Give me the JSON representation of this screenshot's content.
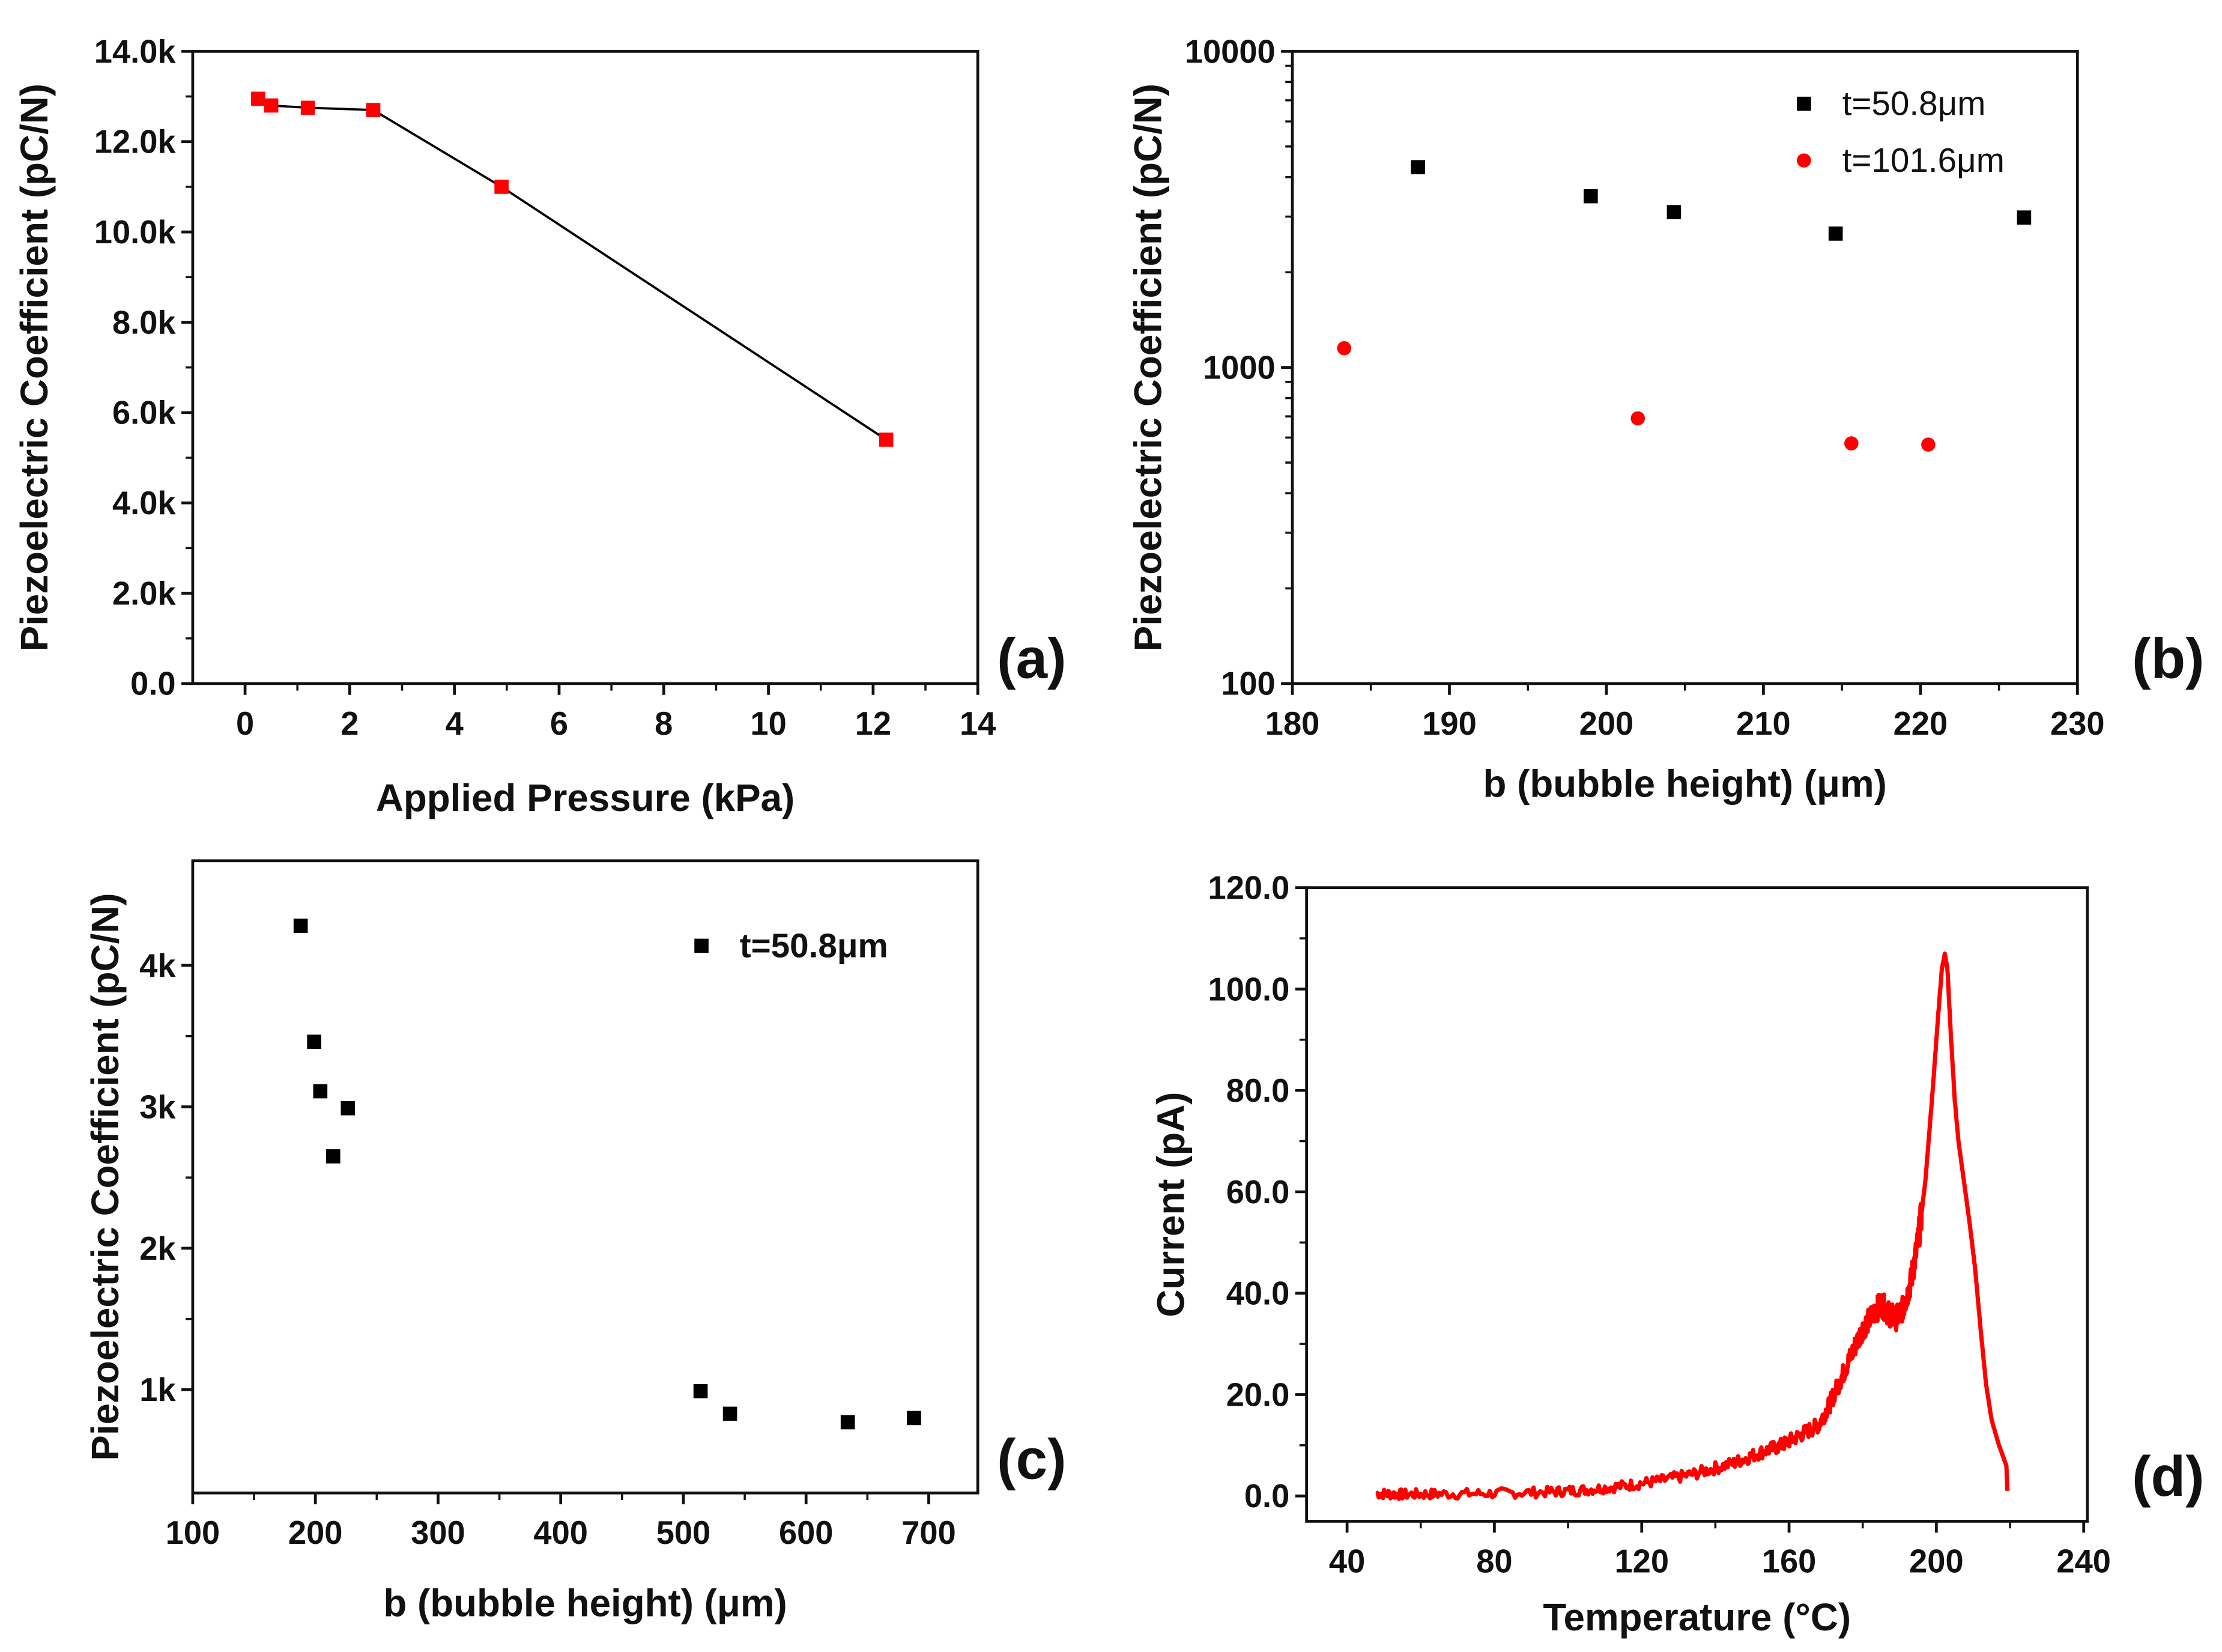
{
  "chart_data": [
    {
      "id": "a",
      "type": "line",
      "panel_label": "(a)",
      "xlabel": "Applied Pressure (kPa)",
      "ylabel": "Piezoelectric Coefficient (pC/N)",
      "xlim": [
        -1,
        14
      ],
      "ylim": [
        0,
        14000
      ],
      "yscale": "linear",
      "xticks": [
        0,
        2,
        4,
        6,
        8,
        10,
        12,
        14
      ],
      "xtick_labels": [
        "0",
        "2",
        "4",
        "6",
        "8",
        "10",
        "12",
        "14"
      ],
      "yticks": [
        0,
        2000,
        4000,
        6000,
        8000,
        10000,
        12000,
        14000
      ],
      "ytick_labels": [
        "0.0",
        "2.0k",
        "4.0k",
        "6.0k",
        "8.0k",
        "10.0k",
        "12.0k",
        "14.0k"
      ],
      "series": [
        {
          "name": "",
          "color": "#ff0000",
          "marker": "square",
          "line_color": "#000000",
          "x": [
            0.25,
            0.5,
            1.2,
            2.45,
            4.9,
            12.25
          ],
          "y": [
            12950,
            12800,
            12750,
            12700,
            11000,
            5400
          ]
        }
      ],
      "legend": false
    },
    {
      "id": "b",
      "type": "scatter",
      "panel_label": "(b)",
      "xlabel": "b (bubble height) (μm)",
      "ylabel": "Piezoelectric Coefficient (pC/N)",
      "xlim": [
        180,
        230
      ],
      "ylim": [
        100,
        10000
      ],
      "yscale": "log",
      "xticks": [
        180,
        190,
        200,
        210,
        220,
        230
      ],
      "xtick_labels": [
        "180",
        "190",
        "200",
        "210",
        "220",
        "230"
      ],
      "yticks": [
        100,
        1000,
        10000
      ],
      "ytick_labels": [
        "100",
        "1000",
        "10000"
      ],
      "series": [
        {
          "name": "t=50.8μm",
          "color": "#000000",
          "marker": "square",
          "x": [
            188,
            199,
            204.3,
            214.6,
            226.6
          ],
          "y": [
            4300,
            3480,
            3100,
            2650,
            2980
          ]
        },
        {
          "name": "t=101.6μm",
          "color": "#ff0000",
          "marker": "circle",
          "x": [
            183.3,
            202,
            215.6,
            220.5
          ],
          "y": [
            1150,
            690,
            575,
            570
          ]
        }
      ],
      "legend": "top-right"
    },
    {
      "id": "c",
      "type": "scatter",
      "panel_label": "(c)",
      "xlabel": "b (bubble height) (μm)",
      "ylabel": "Piezoelectric Coefficient (pC/N)",
      "xlim": [
        100,
        740
      ],
      "ylim": [
        270,
        4740
      ],
      "yscale": "linear",
      "xticks": [
        100,
        200,
        300,
        400,
        500,
        600,
        700
      ],
      "xtick_labels": [
        "100",
        "200",
        "300",
        "400",
        "500",
        "600",
        "700"
      ],
      "yticks": [
        1000,
        2000,
        3000,
        4000
      ],
      "ytick_labels": [
        "1k",
        "2k",
        "3k",
        "4k"
      ],
      "series": [
        {
          "name": "t=50.8μm",
          "color": "#000000",
          "marker": "square",
          "x": [
            188,
            199,
            204,
            214.5,
            226.5,
            514,
            538,
            634,
            688
          ],
          "y": [
            4280,
            3460,
            3110,
            2650,
            2990,
            990,
            830,
            770,
            800
          ]
        }
      ],
      "legend": "top-right"
    },
    {
      "id": "d",
      "type": "line",
      "panel_label": "(d)",
      "xlabel": "Temperature (°C)",
      "ylabel": "Current (pA)",
      "xlim": [
        29,
        241
      ],
      "ylim": [
        -5,
        120
      ],
      "yscale": "linear",
      "xticks": [
        40,
        80,
        120,
        160,
        200,
        240
      ],
      "xtick_labels": [
        "40",
        "80",
        "120",
        "160",
        "200",
        "240"
      ],
      "yticks": [
        0,
        20,
        40,
        60,
        80,
        100,
        120
      ],
      "ytick_labels": [
        "0.0",
        "20.0",
        "40.0",
        "60.0",
        "80.0",
        "100.0",
        "120.0"
      ],
      "series": [
        {
          "name": "",
          "color": "#ff0000",
          "marker": "none",
          "x": [
            48,
            55,
            65,
            80,
            95,
            105,
            115,
            125,
            135,
            145,
            152,
            158,
            163,
            168,
            171,
            174,
            177,
            180,
            183,
            185,
            187,
            189,
            191,
            193,
            195,
            197,
            199,
            200.5,
            201.5,
            202.3,
            203,
            204,
            205,
            206,
            207.5,
            209,
            210.5,
            212,
            213.5,
            215,
            217,
            219,
            219.3
          ],
          "y": [
            0.5,
            0.3,
            0.4,
            0.5,
            0.8,
            1.2,
            2,
            3,
            4.5,
            6.5,
            8.5,
            10,
            12,
            14,
            18,
            23,
            28,
            33,
            36,
            38,
            36,
            35,
            37,
            42,
            50,
            62,
            80,
            95,
            104,
            107,
            104,
            90,
            78,
            70,
            62,
            54,
            45,
            33,
            22,
            15,
            10,
            6,
            1
          ]
        }
      ],
      "legend": false
    }
  ]
}
